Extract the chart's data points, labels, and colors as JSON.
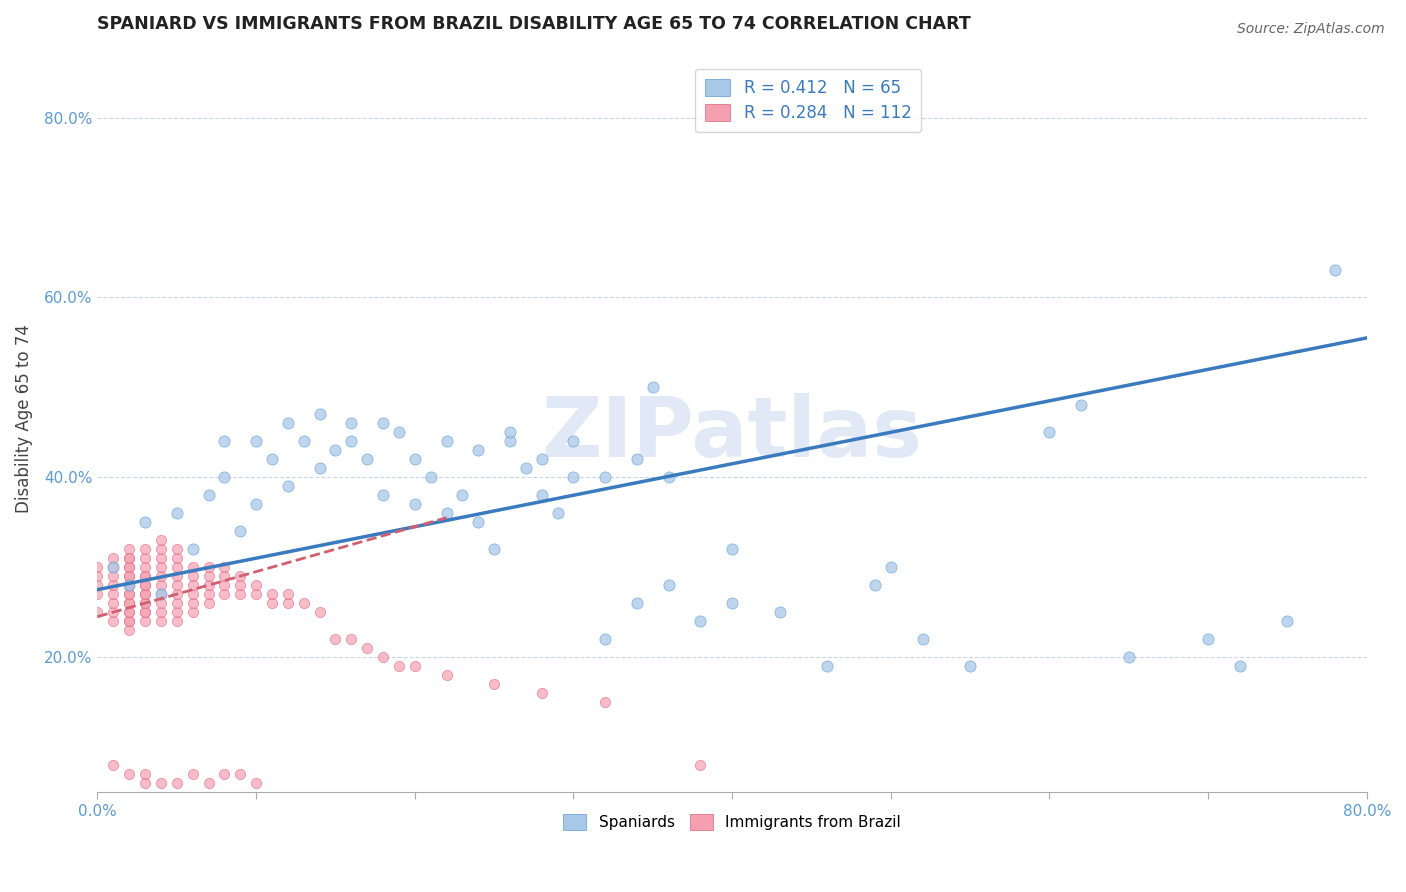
{
  "title": "SPANIARD VS IMMIGRANTS FROM BRAZIL DISABILITY AGE 65 TO 74 CORRELATION CHART",
  "source": "Source: ZipAtlas.com",
  "ylabel": "Disability Age 65 to 74",
  "xlim": [
    0.0,
    0.8
  ],
  "ylim": [
    0.05,
    0.88
  ],
  "yticks": [
    0.2,
    0.4,
    0.6,
    0.8
  ],
  "ytick_labels": [
    "20.0%",
    "40.0%",
    "60.0%",
    "80.0%"
  ],
  "blue_R": 0.412,
  "blue_N": 65,
  "pink_R": 0.284,
  "pink_N": 112,
  "blue_color": "#a8c8e8",
  "pink_color": "#f4a0b0",
  "blue_edge_color": "#5b9bd5",
  "pink_edge_color": "#e06080",
  "blue_line_color": "#3a7bbf",
  "pink_line_color": "#d06070",
  "watermark": "ZIPatlas",
  "legend_label_blue": "Spaniards",
  "legend_label_pink": "Immigrants from Brazil",
  "blue_x": [
    0.01,
    0.02,
    0.03,
    0.04,
    0.05,
    0.06,
    0.07,
    0.08,
    0.09,
    0.1,
    0.11,
    0.12,
    0.13,
    0.14,
    0.15,
    0.16,
    0.17,
    0.18,
    0.19,
    0.2,
    0.21,
    0.22,
    0.23,
    0.24,
    0.25,
    0.26,
    0.27,
    0.28,
    0.29,
    0.3,
    0.32,
    0.34,
    0.36,
    0.38,
    0.4,
    0.43,
    0.46,
    0.49,
    0.52,
    0.55,
    0.35,
    0.4,
    0.5,
    0.6,
    0.62,
    0.65,
    0.7,
    0.72,
    0.75,
    0.78,
    0.08,
    0.1,
    0.12,
    0.14,
    0.16,
    0.18,
    0.2,
    0.22,
    0.24,
    0.26,
    0.28,
    0.3,
    0.32,
    0.34,
    0.36
  ],
  "blue_y": [
    0.3,
    0.28,
    0.35,
    0.27,
    0.36,
    0.32,
    0.38,
    0.4,
    0.34,
    0.37,
    0.42,
    0.39,
    0.44,
    0.41,
    0.43,
    0.46,
    0.42,
    0.38,
    0.45,
    0.37,
    0.4,
    0.36,
    0.38,
    0.35,
    0.32,
    0.44,
    0.41,
    0.38,
    0.36,
    0.4,
    0.22,
    0.26,
    0.28,
    0.24,
    0.32,
    0.25,
    0.19,
    0.28,
    0.22,
    0.19,
    0.5,
    0.26,
    0.3,
    0.45,
    0.48,
    0.2,
    0.22,
    0.19,
    0.24,
    0.63,
    0.44,
    0.44,
    0.46,
    0.47,
    0.44,
    0.46,
    0.42,
    0.44,
    0.43,
    0.45,
    0.42,
    0.44,
    0.4,
    0.42,
    0.4
  ],
  "pink_x": [
    0.0,
    0.0,
    0.0,
    0.0,
    0.0,
    0.01,
    0.01,
    0.01,
    0.01,
    0.01,
    0.01,
    0.01,
    0.01,
    0.02,
    0.02,
    0.02,
    0.02,
    0.02,
    0.02,
    0.02,
    0.02,
    0.02,
    0.02,
    0.02,
    0.02,
    0.02,
    0.02,
    0.02,
    0.02,
    0.02,
    0.02,
    0.03,
    0.03,
    0.03,
    0.03,
    0.03,
    0.03,
    0.03,
    0.03,
    0.03,
    0.03,
    0.03,
    0.03,
    0.03,
    0.03,
    0.04,
    0.04,
    0.04,
    0.04,
    0.04,
    0.04,
    0.04,
    0.04,
    0.04,
    0.04,
    0.05,
    0.05,
    0.05,
    0.05,
    0.05,
    0.05,
    0.05,
    0.05,
    0.05,
    0.06,
    0.06,
    0.06,
    0.06,
    0.06,
    0.06,
    0.07,
    0.07,
    0.07,
    0.07,
    0.07,
    0.08,
    0.08,
    0.08,
    0.08,
    0.09,
    0.09,
    0.09,
    0.1,
    0.1,
    0.11,
    0.11,
    0.12,
    0.12,
    0.13,
    0.14,
    0.15,
    0.16,
    0.17,
    0.18,
    0.19,
    0.2,
    0.22,
    0.25,
    0.28,
    0.32,
    0.01,
    0.02,
    0.03,
    0.03,
    0.04,
    0.05,
    0.06,
    0.07,
    0.08,
    0.09,
    0.1,
    0.38
  ],
  "pink_y": [
    0.25,
    0.27,
    0.28,
    0.29,
    0.3,
    0.24,
    0.25,
    0.26,
    0.27,
    0.28,
    0.29,
    0.3,
    0.31,
    0.23,
    0.24,
    0.25,
    0.26,
    0.27,
    0.28,
    0.29,
    0.3,
    0.31,
    0.32,
    0.24,
    0.25,
    0.26,
    0.27,
    0.28,
    0.29,
    0.3,
    0.31,
    0.24,
    0.25,
    0.26,
    0.27,
    0.28,
    0.29,
    0.3,
    0.31,
    0.32,
    0.25,
    0.26,
    0.27,
    0.28,
    0.29,
    0.24,
    0.25,
    0.26,
    0.27,
    0.28,
    0.29,
    0.3,
    0.31,
    0.32,
    0.33,
    0.24,
    0.25,
    0.26,
    0.27,
    0.28,
    0.29,
    0.3,
    0.31,
    0.32,
    0.25,
    0.26,
    0.27,
    0.28,
    0.29,
    0.3,
    0.26,
    0.27,
    0.28,
    0.29,
    0.3,
    0.27,
    0.28,
    0.29,
    0.3,
    0.27,
    0.28,
    0.29,
    0.27,
    0.28,
    0.26,
    0.27,
    0.26,
    0.27,
    0.26,
    0.25,
    0.22,
    0.22,
    0.21,
    0.2,
    0.19,
    0.19,
    0.18,
    0.17,
    0.16,
    0.15,
    0.08,
    0.07,
    0.06,
    0.07,
    0.06,
    0.06,
    0.07,
    0.06,
    0.07,
    0.07,
    0.06,
    0.08
  ]
}
